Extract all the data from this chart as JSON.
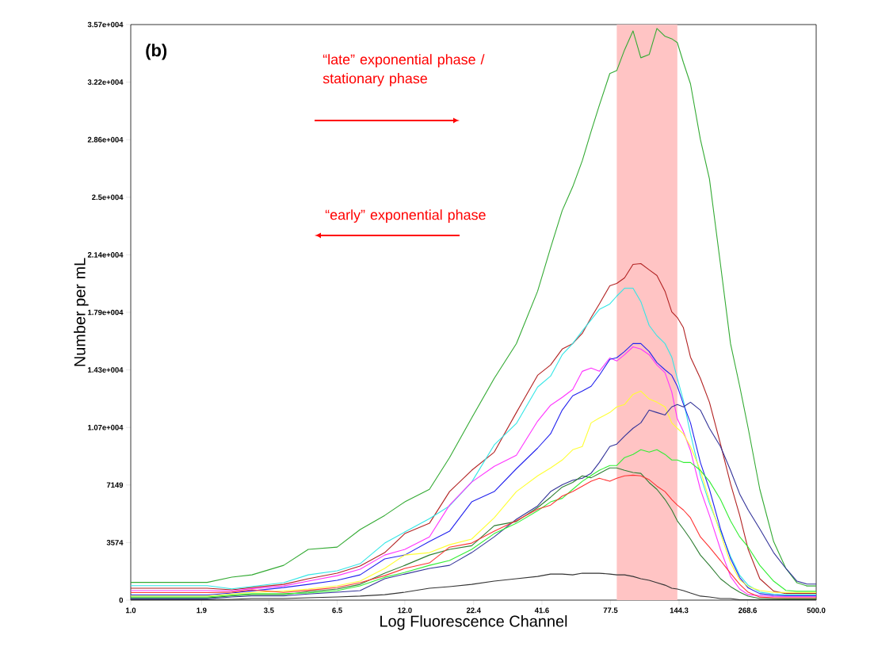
{
  "chart_data": {
    "type": "line",
    "xlabel": "Log Fluorescence Channel",
    "ylabel": "Number per mL",
    "annotations": [
      "(b)",
      "“late” exponential phase / stationary phase",
      "“early” exponential phase"
    ],
    "log": "x",
    "xlim": [
      1,
      500
    ],
    "ylim": [
      0,
      35742
    ],
    "xticks": [
      {
        "value": 1,
        "label": "1.0"
      },
      1.9,
      3.5,
      6.5,
      {
        "value": 12,
        "label": "12.0"
      },
      22.4,
      41.6,
      77.5,
      144.3,
      268.6,
      {
        "value": 500,
        "label": "500.0"
      }
    ],
    "yticks": [
      0,
      3574,
      7149,
      {
        "value": 10723,
        "label": "1.07e+004"
      },
      {
        "value": 14297,
        "label": "1.43e+004"
      },
      {
        "value": 17871,
        "label": "1.79e+004"
      },
      {
        "value": 21445,
        "label": "2.14e+004"
      },
      {
        "value": 25019,
        "label": "2.5e+004"
      },
      {
        "value": 28594,
        "label": "2.86e+004"
      },
      {
        "value": 32168,
        "label": "3.22e+004"
      },
      {
        "value": 35742,
        "label": "3.57e+004"
      }
    ],
    "bands": [
      {
        "axis": "x",
        "from": 82,
        "to": 142,
        "color": "#ffc4c4"
      }
    ],
    "x": [
      1,
      1.2,
      1.5,
      2,
      2.5,
      3,
      4,
      5,
      6.5,
      8,
      10,
      12,
      15,
      18,
      22,
      27,
      33,
      40,
      45,
      50,
      55,
      60,
      65,
      70,
      77,
      82,
      88,
      95,
      102,
      110,
      118,
      127,
      135,
      142,
      150,
      160,
      175,
      190,
      210,
      230,
      250,
      270,
      300,
      340,
      380,
      420,
      460,
      500
    ],
    "series": [
      {
        "color": "#33aa33",
        "values": [
          1100,
          1100,
          1100,
          1100,
          1430,
          1570,
          2160,
          3150,
          3290,
          4380,
          5260,
          6100,
          6880,
          8850,
          11310,
          13770,
          15930,
          19180,
          21880,
          24190,
          25670,
          27290,
          29110,
          30730,
          32700,
          32890,
          34170,
          35350,
          33680,
          33880,
          35500,
          35010,
          34860,
          34620,
          33390,
          32060,
          28620,
          26160,
          20850,
          15930,
          13280,
          10670,
          6880,
          3640,
          1970,
          1080,
          880,
          880
        ]
      },
      {
        "color": "#b22222",
        "values": [
          740,
          740,
          740,
          740,
          640,
          780,
          980,
          1330,
          1670,
          2120,
          2950,
          4130,
          4770,
          6740,
          8060,
          9190,
          11650,
          13960,
          14600,
          15590,
          15930,
          16570,
          17550,
          18390,
          19520,
          19670,
          20010,
          20850,
          20900,
          20510,
          20160,
          19180,
          17900,
          17550,
          16920,
          15090,
          13770,
          12290,
          9690,
          7230,
          5260,
          3150,
          1330,
          560,
          410,
          410,
          410,
          410
        ]
      },
      {
        "color": "#33e6e6",
        "values": [
          900,
          900,
          900,
          900,
          700,
          850,
          1080,
          1570,
          1820,
          2260,
          3540,
          4230,
          5060,
          5850,
          7330,
          9640,
          10970,
          13230,
          13910,
          15240,
          15930,
          16720,
          17410,
          18050,
          18390,
          18880,
          19370,
          19370,
          18540,
          17060,
          16420,
          15930,
          15090,
          13770,
          12400,
          10330,
          7720,
          6000,
          4280,
          2720,
          1540,
          920,
          500,
          380,
          340,
          340,
          340,
          340
        ]
      },
      {
        "color": "#ff33ff",
        "values": [
          590,
          590,
          590,
          590,
          580,
          710,
          880,
          1180,
          1520,
          1920,
          2800,
          3150,
          3930,
          5900,
          7330,
          8310,
          9000,
          11110,
          12100,
          12590,
          13080,
          14210,
          14410,
          14210,
          15040,
          14850,
          15240,
          15730,
          15590,
          15240,
          14600,
          14120,
          12930,
          11260,
          10470,
          9290,
          6880,
          5260,
          3150,
          1470,
          690,
          340,
          280,
          220,
          210,
          210,
          210,
          210
        ]
      },
      {
        "color": "#2222ee",
        "values": [
          320,
          320,
          320,
          320,
          440,
          570,
          780,
          980,
          1230,
          1570,
          2560,
          2800,
          3640,
          4280,
          6100,
          6740,
          8160,
          9440,
          10330,
          11800,
          12690,
          12980,
          13280,
          13960,
          14950,
          15050,
          15440,
          15930,
          15930,
          15440,
          14750,
          14300,
          13960,
          13280,
          12180,
          11010,
          8550,
          6880,
          4420,
          2580,
          1400,
          760,
          400,
          300,
          270,
          270,
          270,
          270
        ]
      },
      {
        "color": "#ffff33",
        "values": [
          260,
          260,
          260,
          260,
          380,
          480,
          560,
          690,
          890,
          1180,
          1970,
          2800,
          2950,
          3440,
          3790,
          5110,
          6740,
          7720,
          8210,
          8700,
          9340,
          9540,
          11010,
          11310,
          11650,
          12000,
          12150,
          12780,
          12980,
          12490,
          12290,
          12000,
          11010,
          10670,
          10330,
          9540,
          8060,
          6200,
          4130,
          2310,
          1260,
          840,
          600,
          480,
          480,
          480,
          480,
          480
        ]
      },
      {
        "color": "#333399",
        "values": [
          80,
          80,
          80,
          80,
          200,
          260,
          260,
          380,
          490,
          590,
          1330,
          1620,
          1970,
          2160,
          2950,
          3930,
          5020,
          5850,
          6740,
          7160,
          7450,
          7570,
          7880,
          8550,
          9540,
          9690,
          10180,
          10670,
          11010,
          11800,
          11650,
          11500,
          12000,
          12150,
          12000,
          12290,
          11800,
          10670,
          9540,
          8060,
          6590,
          5600,
          4420,
          2950,
          1970,
          1180,
          1000,
          1000
        ]
      },
      {
        "color": "#2e7d32",
        "values": [
          140,
          140,
          140,
          140,
          260,
          330,
          330,
          530,
          690,
          980,
          1670,
          2160,
          2800,
          3150,
          3380,
          4620,
          4880,
          5750,
          6390,
          7020,
          7310,
          7720,
          7600,
          7870,
          8210,
          8210,
          8060,
          7930,
          7870,
          7300,
          6880,
          6250,
          5600,
          4920,
          4420,
          3790,
          2800,
          2160,
          1330,
          840,
          490,
          250,
          100,
          90,
          80,
          80,
          80,
          80
        ]
      },
      {
        "color": "#33ee33",
        "values": [
          200,
          200,
          200,
          200,
          320,
          400,
          400,
          450,
          590,
          890,
          1420,
          1720,
          2160,
          2460,
          3150,
          4130,
          4770,
          5550,
          6100,
          6320,
          6880,
          7380,
          7740,
          8060,
          8360,
          8360,
          8850,
          9050,
          9340,
          9190,
          9340,
          9050,
          8700,
          8700,
          8550,
          8550,
          8060,
          7380,
          6250,
          4920,
          3930,
          3290,
          2160,
          1180,
          600,
          550,
          550,
          550
        ]
      },
      {
        "color": "#ff3333",
        "values": [
          470,
          470,
          470,
          470,
          500,
          640,
          480,
          610,
          790,
          1080,
          1520,
          1970,
          2310,
          3290,
          3540,
          4280,
          4940,
          5650,
          5900,
          6460,
          6740,
          7080,
          7380,
          7570,
          7380,
          7570,
          7720,
          7760,
          7720,
          7480,
          7080,
          6740,
          6250,
          5900,
          5600,
          5110,
          3930,
          3290,
          2460,
          1670,
          980,
          490,
          190,
          150,
          150,
          150,
          150,
          150
        ]
      },
      {
        "color": "#333333",
        "values": [
          20,
          20,
          20,
          20,
          50,
          100,
          100,
          150,
          200,
          250,
          340,
          490,
          740,
          840,
          980,
          1180,
          1330,
          1470,
          1620,
          1620,
          1570,
          1670,
          1670,
          1670,
          1620,
          1570,
          1570,
          1470,
          1330,
          1230,
          1080,
          930,
          740,
          690,
          590,
          440,
          250,
          200,
          100,
          100,
          20,
          20,
          20,
          20,
          20,
          20,
          20,
          20
        ]
      }
    ]
  }
}
